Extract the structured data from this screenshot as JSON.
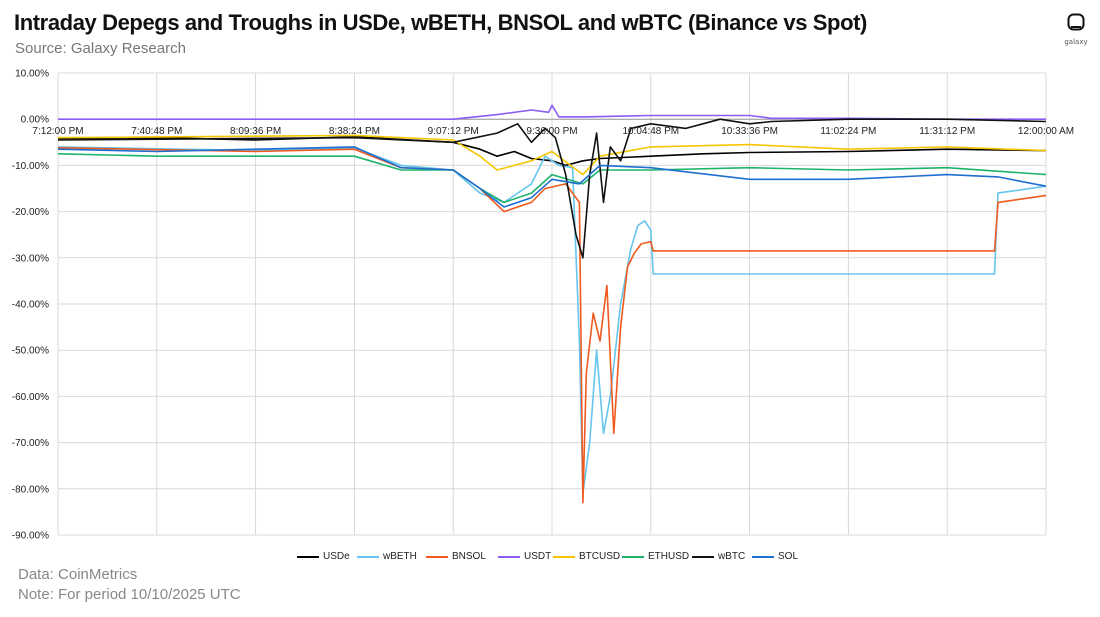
{
  "header": {
    "title": "Intraday Depegs and Troughs in USDe, wBETH, BNSOL and wBTC (Binance vs Spot)",
    "subtitle": "Source: Galaxy Research"
  },
  "logo": {
    "icon": "galaxy-logo-icon",
    "wordmark": "galaxy"
  },
  "footer": {
    "data_note": "Data: CoinMetrics",
    "period_note": "Note: For period 10/10/2025 UTC"
  },
  "chart_data": {
    "type": "line",
    "title": "Intraday Depegs and Troughs in USDe, wBETH, BNSOL and wBTC (Binance vs Spot)",
    "xlabel": "",
    "ylabel": "",
    "x_range": [
      "7:12:00 PM",
      "12:00:00 AM"
    ],
    "x_ticks": [
      "7:12:00 PM",
      "7:40:48 PM",
      "8:09:36 PM",
      "8:38:24 PM",
      "9:07:12 PM",
      "9:36:00 PM",
      "10:04:48 PM",
      "10:33:36 PM",
      "11:02:24 PM",
      "11:31:12 PM",
      "12:00:00 AM"
    ],
    "ylim": [
      -90,
      10
    ],
    "y_ticks": [
      "10.00%",
      "0.00%",
      "-10.00%",
      "-20.00%",
      "-30.00%",
      "-40.00%",
      "-50.00%",
      "-60.00%",
      "-70.00%",
      "-80.00%",
      "-90.00%"
    ],
    "y_unit": "%",
    "grid": true,
    "legend_position": "bottom",
    "series": [
      {
        "name": "USDe",
        "color": "#000000",
        "points": [
          [
            "7:12:00 PM",
            -4.2
          ],
          [
            "7:40:48 PM",
            -4.0
          ],
          [
            "8:09:36 PM",
            -4.5
          ],
          [
            "8:38:24 PM",
            -3.8
          ],
          [
            "8:55:00 PM",
            -4.5
          ],
          [
            "9:07:12 PM",
            -5.0
          ],
          [
            "9:15:00 PM",
            -6.5
          ],
          [
            "9:20:00 PM",
            -8.0
          ],
          [
            "9:25:00 PM",
            -7.0
          ],
          [
            "9:30:00 PM",
            -8.5
          ],
          [
            "9:36:00 PM",
            -9.0
          ],
          [
            "9:40:00 PM",
            -10.0
          ],
          [
            "9:45:00 PM",
            -9.0
          ],
          [
            "9:50:00 PM",
            -8.5
          ],
          [
            "10:04:48 PM",
            -8.0
          ],
          [
            "10:20:00 PM",
            -7.5
          ],
          [
            "10:33:36 PM",
            -7.2
          ],
          [
            "11:02:24 PM",
            -7.0
          ],
          [
            "11:31:12 PM",
            -6.5
          ],
          [
            "12:00:00 AM",
            -6.8
          ]
        ]
      },
      {
        "name": "wBETH",
        "color": "#66c5ee",
        "points": [
          [
            "7:12:00 PM",
            -6.0
          ],
          [
            "8:09:36 PM",
            -6.8
          ],
          [
            "8:38:24 PM",
            -6.2
          ],
          [
            "8:52:00 PM",
            -10.0
          ],
          [
            "9:07:12 PM",
            -11.0
          ],
          [
            "9:15:00 PM",
            -16.0
          ],
          [
            "9:22:00 PM",
            -18.0
          ],
          [
            "9:30:00 PM",
            -14.0
          ],
          [
            "9:34:00 PM",
            -8.0
          ],
          [
            "9:38:00 PM",
            -10.0
          ],
          [
            "9:42:00 PM",
            -10.5
          ],
          [
            "9:44:00 PM",
            -48.0
          ],
          [
            "9:45:00 PM",
            -81.0
          ],
          [
            "9:47:00 PM",
            -70.0
          ],
          [
            "9:49:00 PM",
            -50.0
          ],
          [
            "9:51:00 PM",
            -68.0
          ],
          [
            "9:53:00 PM",
            -60.0
          ],
          [
            "9:56:00 PM",
            -40.0
          ],
          [
            "9:59:00 PM",
            -28.0
          ],
          [
            "10:01:00 PM",
            -23.0
          ],
          [
            "10:03:00 PM",
            -22.0
          ],
          [
            "10:04:48 PM",
            -24.0
          ],
          [
            "10:05:30 PM",
            -33.5
          ],
          [
            "11:02:24 PM",
            -33.5
          ],
          [
            "11:31:12 PM",
            -33.5
          ],
          [
            "11:45:00 PM",
            -33.5
          ],
          [
            "11:46:00 PM",
            -16.0
          ],
          [
            "12:00:00 AM",
            -14.5
          ]
        ]
      },
      {
        "name": "BNSOL",
        "color": "#f05a1f",
        "points": [
          [
            "7:12:00 PM",
            -6.2
          ],
          [
            "8:09:36 PM",
            -7.0
          ],
          [
            "8:38:24 PM",
            -6.5
          ],
          [
            "8:52:00 PM",
            -10.5
          ],
          [
            "9:07:12 PM",
            -11.0
          ],
          [
            "9:15:00 PM",
            -15.0
          ],
          [
            "9:22:00 PM",
            -20.0
          ],
          [
            "9:30:00 PM",
            -18.0
          ],
          [
            "9:34:00 PM",
            -15.0
          ],
          [
            "9:40:00 PM",
            -14.0
          ],
          [
            "9:44:00 PM",
            -18.0
          ],
          [
            "9:45:00 PM",
            -83.0
          ],
          [
            "9:46:00 PM",
            -55.0
          ],
          [
            "9:48:00 PM",
            -42.0
          ],
          [
            "9:50:00 PM",
            -48.0
          ],
          [
            "9:52:00 PM",
            -36.0
          ],
          [
            "9:54:00 PM",
            -68.0
          ],
          [
            "9:56:00 PM",
            -45.0
          ],
          [
            "9:58:00 PM",
            -32.0
          ],
          [
            "10:00:00 PM",
            -29.0
          ],
          [
            "10:02:00 PM",
            -27.0
          ],
          [
            "10:04:48 PM",
            -26.5
          ],
          [
            "10:05:30 PM",
            -28.5
          ],
          [
            "11:02:24 PM",
            -28.5
          ],
          [
            "11:31:12 PM",
            -28.5
          ],
          [
            "11:45:00 PM",
            -28.5
          ],
          [
            "11:46:00 PM",
            -18.0
          ],
          [
            "12:00:00 AM",
            -16.5
          ]
        ]
      },
      {
        "name": "USDT",
        "color": "#8b5cf6",
        "points": [
          [
            "7:12:00 PM",
            0.0
          ],
          [
            "8:38:24 PM",
            0.0
          ],
          [
            "9:07:12 PM",
            0.0
          ],
          [
            "9:20:00 PM",
            1.0
          ],
          [
            "9:30:00 PM",
            2.0
          ],
          [
            "9:35:00 PM",
            1.5
          ],
          [
            "9:36:00 PM",
            3.0
          ],
          [
            "9:38:00 PM",
            0.5
          ],
          [
            "9:45:00 PM",
            0.5
          ],
          [
            "10:04:48 PM",
            0.8
          ],
          [
            "10:33:36 PM",
            0.8
          ],
          [
            "10:40:00 PM",
            0.2
          ],
          [
            "11:02:24 PM",
            0.2
          ],
          [
            "11:31:12 PM",
            0.0
          ],
          [
            "12:00:00 AM",
            0.0
          ]
        ]
      },
      {
        "name": "BTCUSD",
        "color": "#f6c700",
        "points": [
          [
            "7:12:00 PM",
            -4.0
          ],
          [
            "8:38:24 PM",
            -3.5
          ],
          [
            "9:07:12 PM",
            -4.5
          ],
          [
            "9:15:00 PM",
            -8.0
          ],
          [
            "9:20:00 PM",
            -11.0
          ],
          [
            "9:30:00 PM",
            -9.0
          ],
          [
            "9:36:00 PM",
            -7.0
          ],
          [
            "9:45:00 PM",
            -12.0
          ],
          [
            "9:50:00 PM",
            -8.0
          ],
          [
            "10:04:48 PM",
            -6.0
          ],
          [
            "10:33:36 PM",
            -5.5
          ],
          [
            "11:02:24 PM",
            -6.5
          ],
          [
            "11:31:12 PM",
            -6.0
          ],
          [
            "12:00:00 AM",
            -6.8
          ]
        ]
      },
      {
        "name": "ETHUSD",
        "color": "#1db36b",
        "points": [
          [
            "7:12:00 PM",
            -7.5
          ],
          [
            "7:40:48 PM",
            -8.0
          ],
          [
            "8:09:36 PM",
            -8.0
          ],
          [
            "8:38:24 PM",
            -8.0
          ],
          [
            "8:52:00 PM",
            -11.0
          ],
          [
            "9:07:12 PM",
            -11.0
          ],
          [
            "9:15:00 PM",
            -15.0
          ],
          [
            "9:22:00 PM",
            -18.0
          ],
          [
            "9:30:00 PM",
            -16.0
          ],
          [
            "9:36:00 PM",
            -12.0
          ],
          [
            "9:45:00 PM",
            -14.0
          ],
          [
            "9:50:00 PM",
            -11.0
          ],
          [
            "10:04:48 PM",
            -11.0
          ],
          [
            "10:33:36 PM",
            -10.5
          ],
          [
            "11:02:24 PM",
            -11.0
          ],
          [
            "11:31:12 PM",
            -10.5
          ],
          [
            "12:00:00 AM",
            -12.0
          ]
        ]
      },
      {
        "name": "wBTC",
        "color": "#111111",
        "points": [
          [
            "7:12:00 PM",
            -4.5
          ],
          [
            "8:38:24 PM",
            -4.0
          ],
          [
            "9:07:12 PM",
            -5.0
          ],
          [
            "9:20:00 PM",
            -3.0
          ],
          [
            "9:26:00 PM",
            -1.0
          ],
          [
            "9:30:00 PM",
            -5.0
          ],
          [
            "9:34:00 PM",
            -2.0
          ],
          [
            "9:37:00 PM",
            -4.0
          ],
          [
            "9:40:00 PM",
            -12.0
          ],
          [
            "9:43:00 PM",
            -25.0
          ],
          [
            "9:45:00 PM",
            -30.0
          ],
          [
            "9:47:00 PM",
            -12.0
          ],
          [
            "9:49:00 PM",
            -3.0
          ],
          [
            "9:51:00 PM",
            -18.0
          ],
          [
            "9:53:00 PM",
            -6.0
          ],
          [
            "9:56:00 PM",
            -9.0
          ],
          [
            "9:59:00 PM",
            -2.0
          ],
          [
            "10:04:48 PM",
            -1.0
          ],
          [
            "10:15:00 PM",
            -2.0
          ],
          [
            "10:25:00 PM",
            0.0
          ],
          [
            "10:33:36 PM",
            -1.0
          ],
          [
            "10:40:00 PM",
            -0.5
          ],
          [
            "11:02:24 PM",
            0.0
          ],
          [
            "11:31:12 PM",
            0.0
          ],
          [
            "12:00:00 AM",
            -0.5
          ]
        ]
      },
      {
        "name": "SOL",
        "color": "#1f6fd1",
        "points": [
          [
            "7:12:00 PM",
            -6.5
          ],
          [
            "7:40:48 PM",
            -7.0
          ],
          [
            "8:09:36 PM",
            -6.5
          ],
          [
            "8:38:24 PM",
            -6.0
          ],
          [
            "8:52:00 PM",
            -10.5
          ],
          [
            "9:07:12 PM",
            -11.0
          ],
          [
            "9:15:00 PM",
            -15.0
          ],
          [
            "9:22:00 PM",
            -19.0
          ],
          [
            "9:30:00 PM",
            -17.0
          ],
          [
            "9:36:00 PM",
            -13.0
          ],
          [
            "9:44:00 PM",
            -14.0
          ],
          [
            "9:50:00 PM",
            -10.0
          ],
          [
            "10:04:48 PM",
            -10.5
          ],
          [
            "10:33:36 PM",
            -13.0
          ],
          [
            "11:02:24 PM",
            -13.0
          ],
          [
            "11:31:12 PM",
            -12.0
          ],
          [
            "11:46:00 PM",
            -12.5
          ],
          [
            "12:00:00 AM",
            -14.5
          ]
        ]
      }
    ]
  }
}
